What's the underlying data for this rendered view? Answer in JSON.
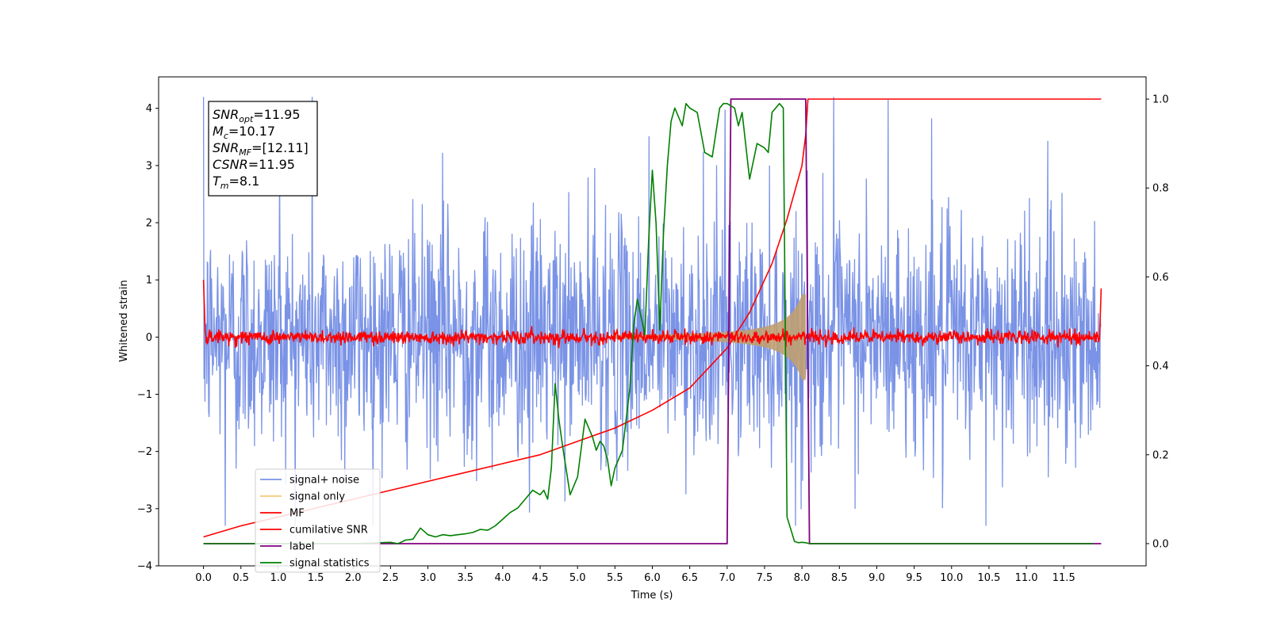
{
  "chart_data": {
    "type": "line",
    "xlabel": "Time (s)",
    "ylabel": "Whitened strain",
    "xlim": [
      -0.6,
      12.6
    ],
    "ylim": [
      -4.0,
      4.55
    ],
    "ylim_right": [
      -0.05,
      1.05
    ],
    "x_ticks": [
      0.0,
      0.5,
      1.0,
      1.5,
      2.0,
      2.5,
      3.0,
      3.5,
      4.0,
      4.5,
      5.0,
      5.5,
      6.0,
      6.5,
      7.0,
      7.5,
      8.0,
      8.5,
      9.0,
      9.5,
      10.0,
      10.5,
      11.0,
      11.5
    ],
    "x_tick_labels": [
      "0.0",
      "0.5",
      "1.0",
      "1.5",
      "2.0",
      "2.5",
      "3.0",
      "3.5",
      "4.0",
      "4.5",
      "5.0",
      "5.5",
      "6.0",
      "6.5",
      "7.0",
      "7.5",
      "8.0",
      "8.5",
      "9.0",
      "9.5",
      "10.0",
      "10.5",
      "11.0",
      "11.5"
    ],
    "y_ticks": [
      -4,
      -3,
      -2,
      -1,
      0,
      1,
      2,
      3,
      4
    ],
    "y_tick_labels": [
      "−4",
      "−3",
      "−2",
      "−1",
      "0",
      "1",
      "2",
      "3",
      "4"
    ],
    "y_ticks_right": [
      0.0,
      0.2,
      0.4,
      0.6,
      0.8,
      1.0
    ],
    "y_tick_labels_right": [
      "0.0",
      "0.2",
      "0.4",
      "0.6",
      "0.8",
      "1.0"
    ],
    "grid": false,
    "legend_position": "lower-left",
    "annotation": [
      {
        "sym": "SNR",
        "sub": "opt",
        "value": "=11.95"
      },
      {
        "sym": "M",
        "sub": "c",
        "value": "=10.17"
      },
      {
        "sym": "SNR",
        "sub": "MF",
        "value": "=[12.11]"
      },
      {
        "sym": "CSNR",
        "sub": "",
        "value": "=11.95"
      },
      {
        "sym": "T",
        "sub": "m",
        "value": "=8.1"
      }
    ],
    "series": [
      {
        "name": "signal+ noise",
        "color": "#7a93e6",
        "axis": "left",
        "approx_std": 1.0,
        "x_range": [
          0.0,
          12.0
        ]
      },
      {
        "name": "signal only",
        "color": "#f7c87a",
        "axis": "left",
        "chirp_envelope": {
          "start": 5.5,
          "peak_time": 8.05,
          "peak_amplitude": 0.75
        }
      },
      {
        "name": "MF",
        "color": "#ff0000",
        "axis": "left",
        "approx_std": 0.06,
        "edge_values": [
          1.0,
          0.85
        ]
      },
      {
        "name": "cumilative SNR",
        "color": "#ff0000",
        "axis": "right",
        "x": [
          0.0,
          0.5,
          1.0,
          1.5,
          2.0,
          2.5,
          3.0,
          3.5,
          4.0,
          4.5,
          5.0,
          5.5,
          6.0,
          6.5,
          7.0,
          7.3,
          7.6,
          7.8,
          8.0,
          8.05,
          8.08,
          12.0
        ],
        "y": [
          0.015,
          0.04,
          0.06,
          0.08,
          0.1,
          0.12,
          0.14,
          0.16,
          0.18,
          0.2,
          0.23,
          0.26,
          0.3,
          0.35,
          0.44,
          0.52,
          0.63,
          0.73,
          0.85,
          0.92,
          1.0,
          1.0
        ]
      },
      {
        "name": "label",
        "color": "#800080",
        "axis": "right",
        "x": [
          0.0,
          7.0,
          7.05,
          8.05,
          8.1,
          12.0
        ],
        "y": [
          0.0,
          0.0,
          1.0,
          1.0,
          0.0,
          0.0
        ]
      },
      {
        "name": "signal statistics",
        "color": "#008000",
        "axis": "right",
        "x": [
          0.0,
          0.5,
          1.0,
          1.5,
          2.0,
          2.5,
          2.6,
          2.7,
          2.8,
          2.9,
          3.0,
          3.1,
          3.2,
          3.3,
          3.4,
          3.5,
          3.6,
          3.7,
          3.8,
          3.9,
          4.0,
          4.1,
          4.2,
          4.3,
          4.4,
          4.5,
          4.55,
          4.6,
          4.65,
          4.7,
          4.75,
          4.8,
          4.9,
          5.0,
          5.1,
          5.2,
          5.25,
          5.3,
          5.35,
          5.4,
          5.45,
          5.5,
          5.6,
          5.7,
          5.75,
          5.8,
          5.9,
          5.95,
          6.0,
          6.05,
          6.1,
          6.15,
          6.2,
          6.25,
          6.3,
          6.35,
          6.4,
          6.45,
          6.5,
          6.6,
          6.7,
          6.8,
          6.9,
          6.95,
          7.0,
          7.1,
          7.15,
          7.2,
          7.3,
          7.4,
          7.5,
          7.55,
          7.6,
          7.7,
          7.75,
          7.8,
          7.9,
          7.95,
          8.0,
          8.05,
          8.1,
          8.15,
          8.2,
          8.5,
          9.0,
          10.0,
          11.0,
          11.9
        ],
        "y": [
          0.0,
          0.0,
          0.0,
          0.0,
          0.0,
          0.003,
          0.0,
          0.008,
          0.01,
          0.035,
          0.02,
          0.015,
          0.02,
          0.018,
          0.02,
          0.022,
          0.025,
          0.032,
          0.03,
          0.04,
          0.055,
          0.07,
          0.08,
          0.1,
          0.12,
          0.11,
          0.12,
          0.1,
          0.17,
          0.36,
          0.28,
          0.22,
          0.11,
          0.15,
          0.28,
          0.24,
          0.21,
          0.23,
          0.22,
          0.19,
          0.13,
          0.17,
          0.21,
          0.35,
          0.49,
          0.55,
          0.47,
          0.68,
          0.84,
          0.72,
          0.48,
          0.7,
          0.85,
          0.95,
          0.98,
          0.96,
          0.94,
          0.99,
          0.98,
          0.97,
          0.88,
          0.87,
          0.98,
          0.99,
          0.99,
          0.98,
          0.94,
          0.97,
          0.82,
          0.9,
          0.89,
          0.88,
          0.97,
          0.99,
          0.98,
          0.06,
          0.005,
          0.002,
          0.003,
          0.002,
          0.0,
          0.0,
          0.0,
          0.0,
          0.0,
          0.0,
          0.0,
          0.0
        ]
      }
    ]
  }
}
